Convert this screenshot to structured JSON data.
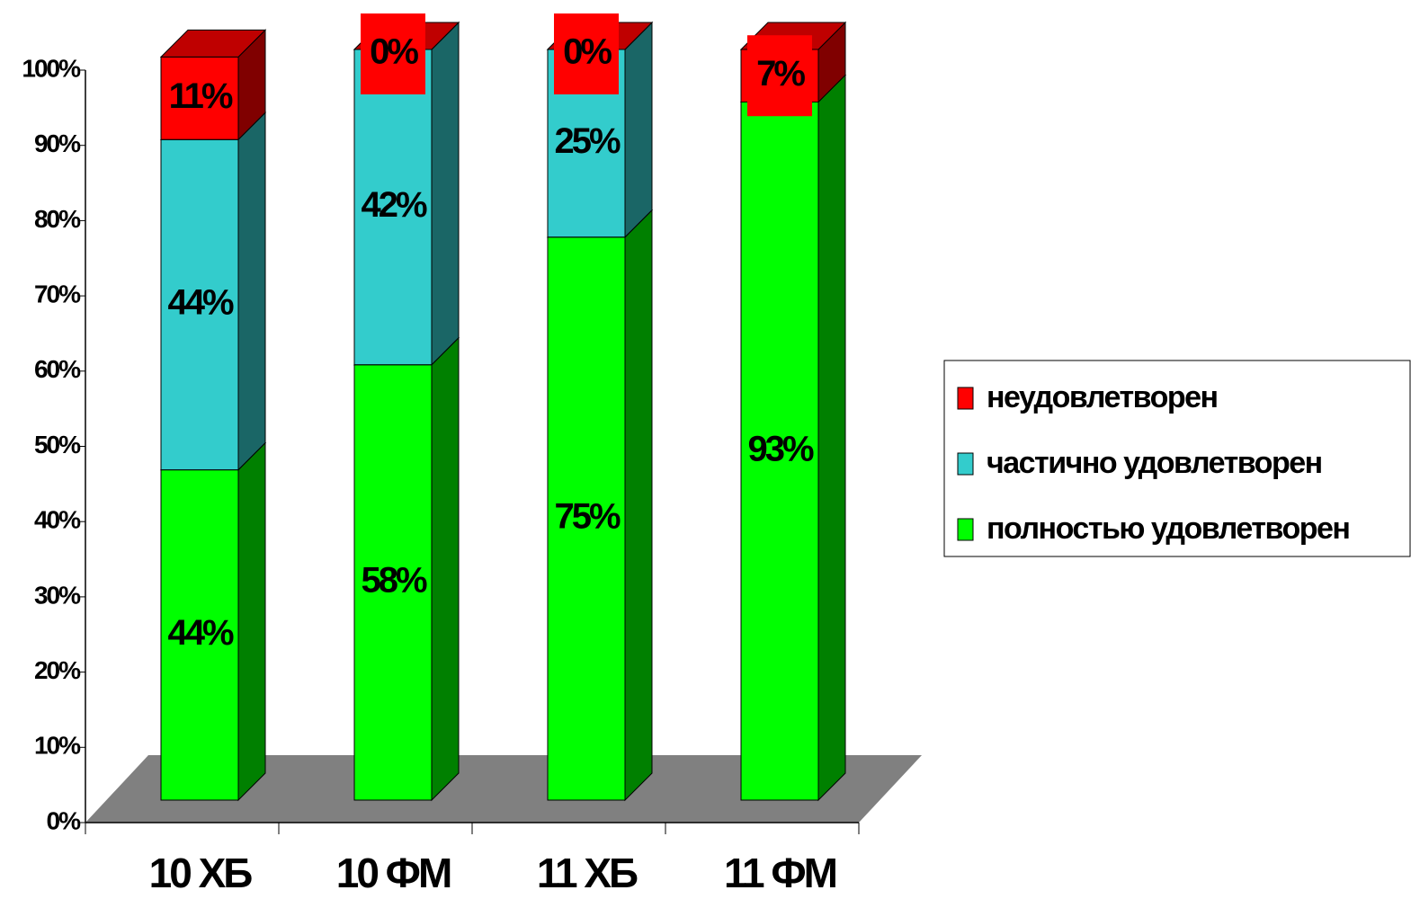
{
  "chart_data": {
    "type": "bar3d_stacked",
    "categories": [
      "10 ХБ",
      "10 ФМ",
      "11 ХБ",
      "11 ФМ"
    ],
    "series": [
      {
        "name": "полностью удовлетворен",
        "color": "#00ff00",
        "values": [
          44,
          58,
          75,
          93
        ],
        "value_labels": [
          "44%",
          "58%",
          "75%",
          "93%"
        ]
      },
      {
        "name": "частично удовлетворен",
        "color": "#33cccc",
        "values": [
          44,
          42,
          25,
          null
        ],
        "value_labels": [
          "44%",
          "42%",
          "25%",
          null
        ]
      },
      {
        "name": "неудовлетворен",
        "color": "#ff0000",
        "values": [
          11,
          0,
          0,
          7
        ],
        "value_labels": [
          "11%",
          "0%",
          "0%",
          "7%"
        ]
      }
    ],
    "ylim": [
      0,
      100
    ],
    "yticks": [
      {
        "value": 0,
        "label": "0%"
      },
      {
        "value": 10,
        "label": "10%"
      },
      {
        "value": 20,
        "label": "20%"
      },
      {
        "value": 30,
        "label": "30%"
      },
      {
        "value": 40,
        "label": "40%"
      },
      {
        "value": 50,
        "label": "50%"
      },
      {
        "value": 60,
        "label": "60%"
      },
      {
        "value": 70,
        "label": "70%"
      },
      {
        "value": 80,
        "label": "80%"
      },
      {
        "value": 90,
        "label": "90%"
      },
      {
        "value": 100,
        "label": "100%"
      }
    ],
    "legend": "right"
  }
}
